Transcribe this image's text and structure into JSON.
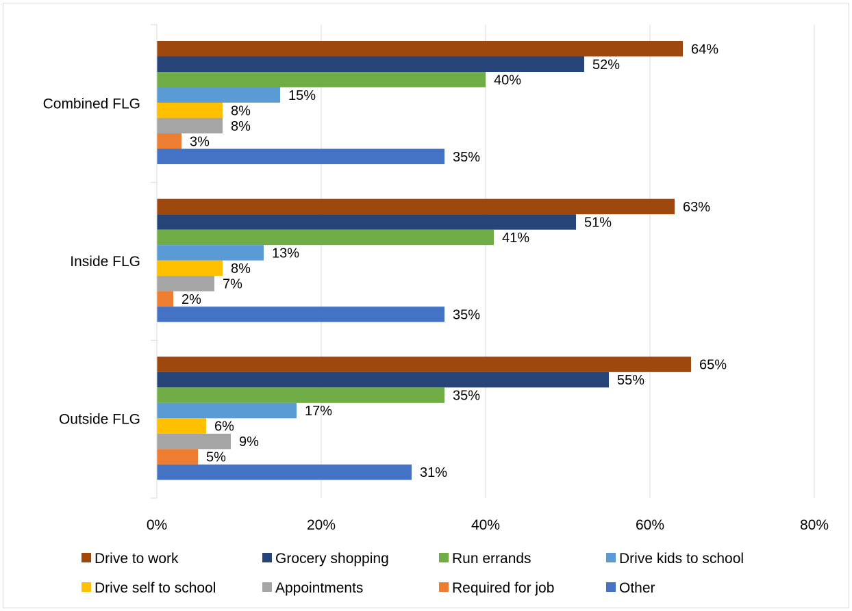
{
  "chart_data": {
    "type": "bar",
    "orientation": "horizontal",
    "categories": [
      "Combined FLG",
      "Inside FLG",
      "Outside FLG"
    ],
    "series": [
      {
        "name": "Drive to work",
        "color": "#9E480E",
        "values": [
          64,
          63,
          65
        ],
        "labels": [
          "64%",
          "63%",
          "65%"
        ]
      },
      {
        "name": "Grocery shopping",
        "color": "#264478",
        "values": [
          52,
          51,
          55
        ],
        "labels": [
          "52%",
          "51%",
          "55%"
        ]
      },
      {
        "name": "Run errands",
        "color": "#70AD47",
        "values": [
          40,
          41,
          35
        ],
        "labels": [
          "40%",
          "41%",
          "35%"
        ]
      },
      {
        "name": "Drive kids to school",
        "color": "#5B9BD5",
        "values": [
          15,
          13,
          17
        ],
        "labels": [
          "15%",
          "13%",
          "17%"
        ]
      },
      {
        "name": "Drive self to school",
        "color": "#FFC000",
        "values": [
          8,
          8,
          6
        ],
        "labels": [
          "8%",
          "8%",
          "6%"
        ]
      },
      {
        "name": "Appointments",
        "color": "#A5A5A5",
        "values": [
          8,
          7,
          9
        ],
        "labels": [
          "8%",
          "7%",
          "9%"
        ]
      },
      {
        "name": "Required for job",
        "color": "#ED7D31",
        "values": [
          3,
          2,
          5
        ],
        "labels": [
          "3%",
          "2%",
          "5%"
        ]
      },
      {
        "name": "Other",
        "color": "#4472C4",
        "values": [
          35,
          35,
          31
        ],
        "labels": [
          "35%",
          "35%",
          "31%"
        ]
      }
    ],
    "x_ticks": [
      {
        "value": 0,
        "label": "0%"
      },
      {
        "value": 20,
        "label": "20%"
      },
      {
        "value": 40,
        "label": "40%"
      },
      {
        "value": 60,
        "label": "60%"
      },
      {
        "value": 80,
        "label": "80%"
      }
    ],
    "xlim": [
      0,
      80
    ],
    "xlabel": "",
    "ylabel": "",
    "grid": "vertical",
    "legend_position": "bottom"
  }
}
